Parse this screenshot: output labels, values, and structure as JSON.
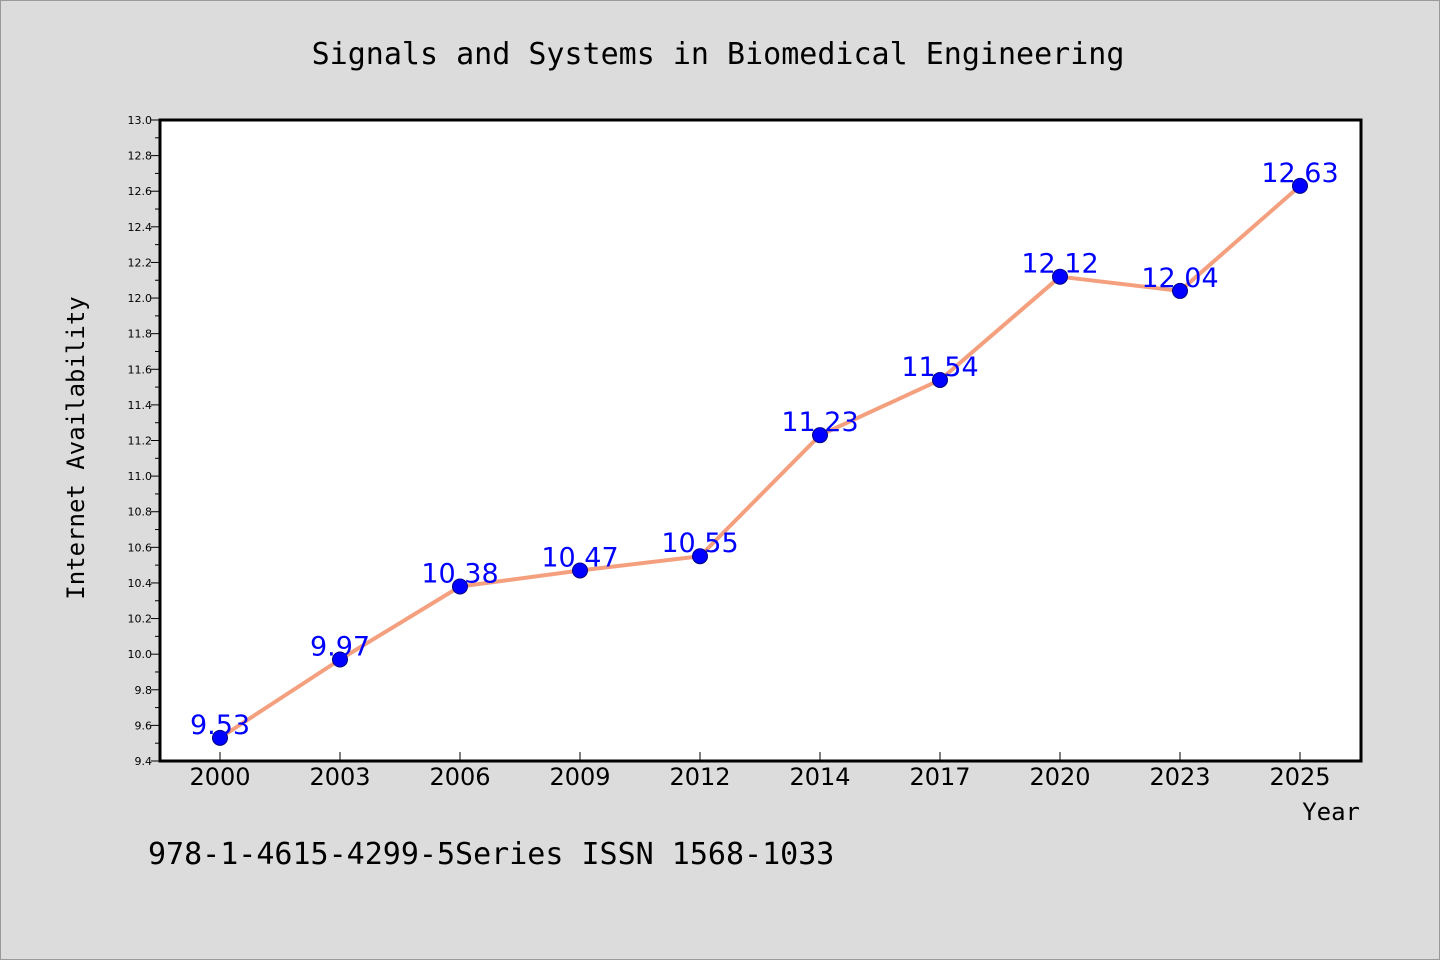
{
  "chart_data": {
    "type": "line",
    "title": "Signals and Systems in Biomedical Engineering",
    "xlabel": "Year",
    "ylabel": "Internet Availability",
    "categories": [
      "2000",
      "2003",
      "2006",
      "2009",
      "2012",
      "2014",
      "2017",
      "2020",
      "2023",
      "2025"
    ],
    "values": [
      9.53,
      9.97,
      10.38,
      10.47,
      10.55,
      11.23,
      11.54,
      12.12,
      12.04,
      12.63
    ],
    "data_labels": [
      "9.53",
      "9.97",
      "10.38",
      "10.47",
      "10.55",
      "11.23",
      "11.54",
      "12.12",
      "12.04",
      "12.63"
    ],
    "ylim": [
      9.4,
      13.0
    ],
    "yticks": [
      "9.4",
      "9.6",
      "9.8",
      "10.0",
      "10.2",
      "10.4",
      "10.6",
      "10.8",
      "11.0",
      "11.2",
      "11.4",
      "11.6",
      "11.8",
      "12.0",
      "12.2",
      "12.4",
      "12.6",
      "12.8",
      "13.0"
    ],
    "grid": false,
    "line_color": "#f4a07e",
    "marker_color": "#0000ff",
    "label_color": "#0000ff"
  },
  "footer": {
    "text": "978-1-4615-4299-5Series ISSN 1568-1033"
  }
}
